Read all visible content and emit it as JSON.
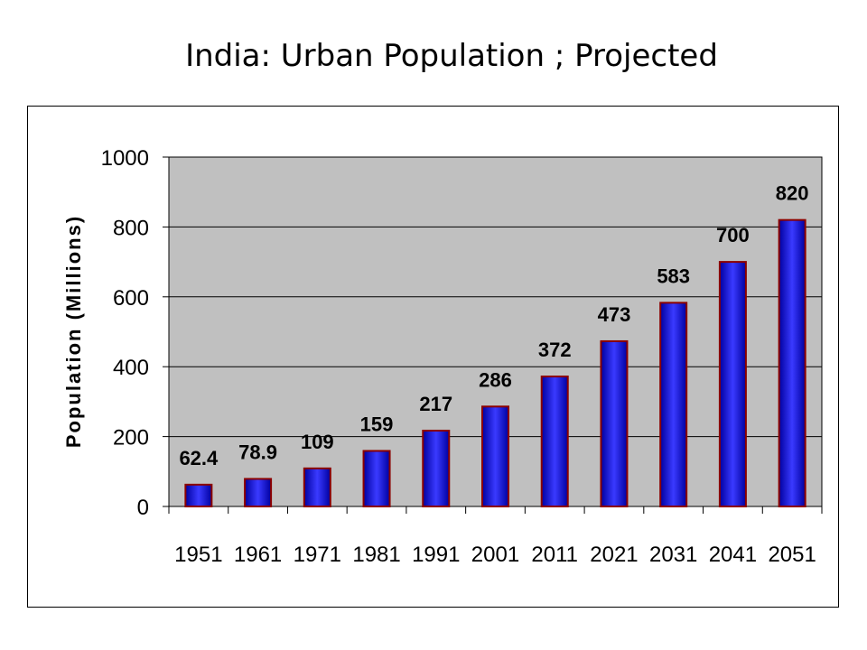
{
  "slide": {
    "title": "India: Urban Population ; Projected"
  },
  "chart_data": {
    "type": "bar",
    "title": "",
    "xlabel": "",
    "ylabel": "Population (Millions)",
    "ylim": [
      0,
      1000
    ],
    "yticks": [
      0,
      200,
      400,
      600,
      800,
      1000
    ],
    "grid": true,
    "legend": "none",
    "categories": [
      "1951",
      "1961",
      "1971",
      "1981",
      "1991",
      "2001",
      "2011",
      "2021",
      "2031",
      "2041",
      "2051"
    ],
    "values": [
      62.4,
      78.9,
      109,
      159,
      217,
      286,
      372,
      473,
      583,
      700,
      820
    ],
    "data_labels": [
      "62.4",
      "78.9",
      "109",
      "159",
      "217",
      "286",
      "372",
      "473",
      "583",
      "700",
      "820"
    ],
    "colors": {
      "plot_background": "#c0c0c0",
      "bar_edge": "#0000a0",
      "bar_center": "#3a3aff",
      "bar_border": "#8b0000"
    }
  }
}
